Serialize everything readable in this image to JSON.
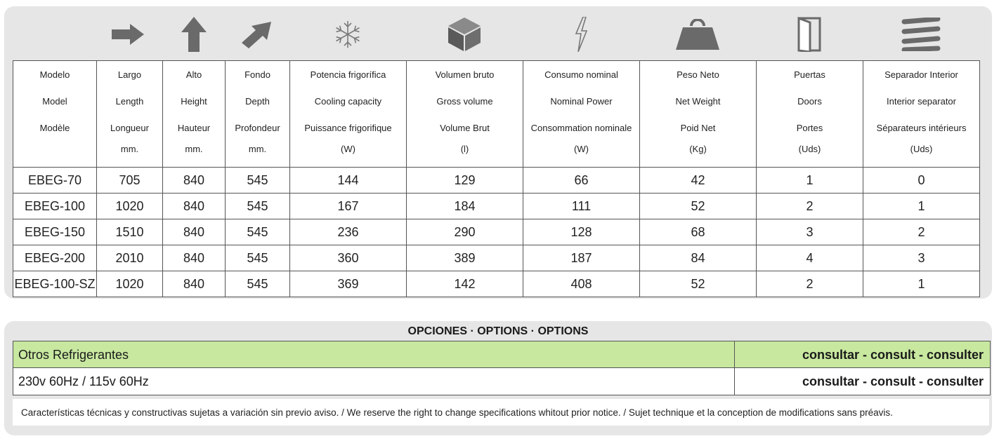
{
  "icons": [
    "right-arrow-icon",
    "up-arrow-icon",
    "diagonal-arrow-icon",
    "snowflake-icon",
    "cube-icon",
    "lightning-bolt-icon",
    "weight-icon",
    "door-icon",
    "separator-lines-icon"
  ],
  "headers": [
    {
      "l1": "Modelo",
      "l2": "Model",
      "l3": "Modèle",
      "l4": ""
    },
    {
      "l1": "Largo",
      "l2": "Length",
      "l3": "Longueur",
      "l4": "mm."
    },
    {
      "l1": "Alto",
      "l2": "Height",
      "l3": "Hauteur",
      "l4": "mm."
    },
    {
      "l1": "Fondo",
      "l2": "Depth",
      "l3": "Profondeur",
      "l4": "mm."
    },
    {
      "l1": "Potencia frigorífica",
      "l2": "Cooling capacity",
      "l3": "Puissance frigorifique",
      "l4": "(W)"
    },
    {
      "l1": "Volumen bruto",
      "l2": "Gross volume",
      "l3": "Volume Brut",
      "l4": "(l)"
    },
    {
      "l1": "Consumo nominal",
      "l2": "Nominal Power",
      "l3": "Consommation nominale",
      "l4": "(W)"
    },
    {
      "l1": "Peso Neto",
      "l2": "Net Weight",
      "l3": "Poid Net",
      "l4": "(Kg)"
    },
    {
      "l1": "Puertas",
      "l2": "Doors",
      "l3": "Portes",
      "l4": "(Uds)"
    },
    {
      "l1": "Separador Interior",
      "l2": "Interior separator",
      "l3": "Séparateurs intérieurs",
      "l4": "(Uds)"
    }
  ],
  "rows": [
    [
      "EBEG-70",
      "705",
      "840",
      "545",
      "144",
      "129",
      "66",
      "42",
      "1",
      "0"
    ],
    [
      "EBEG-100",
      "1020",
      "840",
      "545",
      "167",
      "184",
      "111",
      "52",
      "2",
      "1"
    ],
    [
      "EBEG-150",
      "1510",
      "840",
      "545",
      "236",
      "290",
      "128",
      "68",
      "3",
      "2"
    ],
    [
      "EBEG-200",
      "2010",
      "840",
      "545",
      "360",
      "389",
      "187",
      "84",
      "4",
      "3"
    ],
    [
      "EBEG-100-SZ",
      "1020",
      "840",
      "545",
      "369",
      "142",
      "408",
      "52",
      "2",
      "1"
    ]
  ],
  "options": {
    "title": "OPCIONES · OPTIONS · OPTIONS",
    "items": [
      {
        "label": "Otros Refrigerantes",
        "value": "consultar - consult - consulter"
      },
      {
        "label": "230v 60Hz / 115v 60Hz",
        "value": "consultar - consult - consulter"
      }
    ],
    "highlight_color": "#c8e8a0"
  },
  "note": "Características técnicas y constructivas sujetas a variación sin previo aviso. / We reserve the right to change specifications whitout prior notice. / Sujet technique et la conception de modifications sans préavis.",
  "colors": {
    "panel": "#e6e6e6",
    "icon": "#666666",
    "border": "#555555"
  }
}
